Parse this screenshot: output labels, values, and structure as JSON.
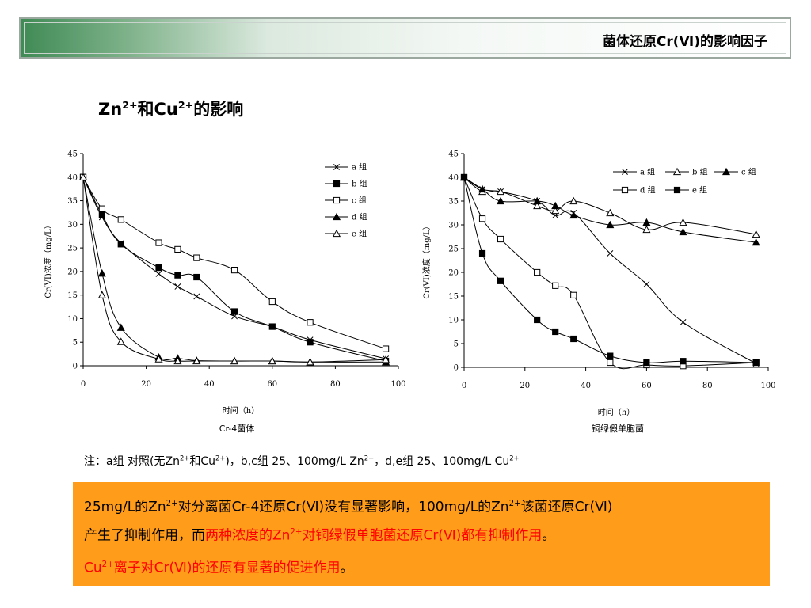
{
  "header": {
    "title": "菌体还原Cr(Ⅵ)的影响因子"
  },
  "heading": {
    "prefix": "Zn",
    "sup1": "2+",
    "mid": "和Cu",
    "sup2": "2+",
    "suffix": "的影响"
  },
  "charts": [
    {
      "xlabel": "时间（h）",
      "ylabel": "Cr(VI)浓度（mg/L）",
      "caption": "Cr-4菌体"
    },
    {
      "xlabel": "时间（h）",
      "ylabel": "Cr(VI)浓度（mg/L）",
      "caption": "铜绿假单胞菌"
    }
  ],
  "note": {
    "p1": "注：a组 对照(无Zn",
    "s1": "2+",
    "p2": "和Cu",
    "s2": "2+",
    "p3": ")，b,c组 25、100mg/L Zn",
    "s3": "2+",
    "p4": "，d,e组 25、100mg/L Cu",
    "s4": "2+"
  },
  "box": {
    "l1a": "25mg/L的Zn",
    "l1s1": "2+",
    "l1b": "对分离菌Cr-4还原Cr(Ⅵ)没有显著影响，100mg/L的Zn",
    "l1s2": "2+",
    "l1c": "该菌还原Cr(Ⅵ)",
    "l2a": "产生了抑制作用，而",
    "l2red1": "两种浓度的Zn",
    "l2s": "2+",
    "l2red2": "对铜绿假单胞菌还原Cr(Ⅵ)都有抑制作用",
    "l2end": "。",
    "l3red1": "Cu",
    "l3s": "2+",
    "l3red2": "离子对Cr(Ⅵ)的还原有显著的促进作用",
    "l3end": "。"
  },
  "chart_data": [
    {
      "type": "line",
      "xlabel": "时间（h）",
      "ylabel": "Cr(VI)浓度（mg/L）",
      "xlim": [
        0,
        100
      ],
      "ylim": [
        0,
        45
      ],
      "xticks": [
        0,
        20,
        40,
        60,
        80,
        100
      ],
      "yticks": [
        0,
        5,
        10,
        15,
        20,
        25,
        30,
        35,
        40,
        45
      ],
      "legend_position": "top-right",
      "series": [
        {
          "name": "a 组",
          "marker": "x",
          "x": [
            0,
            6,
            12,
            24,
            30,
            36,
            48,
            60,
            72,
            96
          ],
          "y": [
            40,
            31.5,
            26,
            19.5,
            16.8,
            14.7,
            10.5,
            8.3,
            5.5,
            1.5
          ]
        },
        {
          "name": "b 组",
          "marker": "square-filled",
          "x": [
            0,
            6,
            12,
            24,
            30,
            36,
            48,
            60,
            72,
            96
          ],
          "y": [
            40,
            32,
            25.8,
            20.8,
            19.2,
            18.8,
            11.5,
            8.3,
            5,
            1
          ]
        },
        {
          "name": "c 组",
          "marker": "square-open",
          "x": [
            0,
            6,
            12,
            24,
            30,
            36,
            48,
            60,
            72,
            96
          ],
          "y": [
            40,
            33.3,
            31,
            26.1,
            24.7,
            22.9,
            20.3,
            13.6,
            9.2,
            3.6
          ]
        },
        {
          "name": "d 组",
          "marker": "triangle-filled",
          "x": [
            0,
            6,
            12,
            24,
            30,
            36,
            48,
            60,
            72,
            96
          ],
          "y": [
            40,
            19.6,
            8.1,
            1.8,
            1.6,
            1.1,
            1,
            1,
            0.8,
            0.8
          ]
        },
        {
          "name": "e 组",
          "marker": "triangle-open",
          "x": [
            0,
            6,
            12,
            24,
            30,
            36,
            48,
            60,
            72,
            96
          ],
          "y": [
            40,
            15,
            5.1,
            1.4,
            1,
            1,
            1,
            1,
            0.8,
            1.3
          ]
        }
      ]
    },
    {
      "type": "line",
      "xlabel": "时间（h）",
      "ylabel": "Cr(VI)浓度（mg/L）",
      "xlim": [
        0,
        100
      ],
      "ylim": [
        0,
        45
      ],
      "xticks": [
        0,
        20,
        40,
        60,
        80,
        100
      ],
      "yticks": [
        0,
        5,
        10,
        15,
        20,
        25,
        30,
        35,
        40,
        45
      ],
      "legend_position": "top-right",
      "series": [
        {
          "name": "a 组",
          "marker": "x",
          "x": [
            0,
            6,
            12,
            24,
            30,
            36,
            48,
            60,
            72,
            96
          ],
          "y": [
            40,
            37.5,
            37,
            35,
            32,
            32.5,
            24,
            17.5,
            9.5,
            0.8
          ]
        },
        {
          "name": "b 组",
          "marker": "triangle-open",
          "x": [
            0,
            6,
            12,
            24,
            30,
            36,
            48,
            60,
            72,
            96
          ],
          "y": [
            40,
            37,
            37,
            34,
            33,
            35,
            32.5,
            29,
            30.5,
            28
          ]
        },
        {
          "name": "c 组",
          "marker": "triangle-filled",
          "x": [
            0,
            6,
            12,
            24,
            30,
            36,
            48,
            60,
            72,
            96
          ],
          "y": [
            40,
            37.5,
            35,
            35,
            34,
            32,
            30,
            30.5,
            28.5,
            26.3
          ]
        },
        {
          "name": "d 组",
          "marker": "square-open",
          "x": [
            0,
            6,
            12,
            24,
            30,
            36,
            48,
            60,
            72,
            96
          ],
          "y": [
            40,
            31.3,
            27,
            20,
            17.2,
            15.2,
            1,
            0.5,
            0.3,
            1
          ]
        },
        {
          "name": "e 组",
          "marker": "square-filled",
          "x": [
            0,
            6,
            12,
            24,
            30,
            36,
            48,
            60,
            72,
            96
          ],
          "y": [
            40,
            24,
            18.2,
            10,
            7.5,
            6,
            2.4,
            1,
            1.3,
            1
          ]
        }
      ]
    }
  ]
}
